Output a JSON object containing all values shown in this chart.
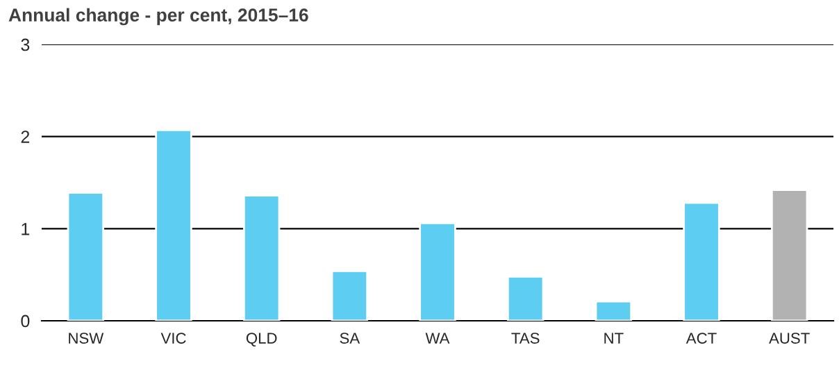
{
  "chart_data": {
    "type": "bar",
    "title": "Annual change - per cent, 2015–16",
    "categories": [
      "NSW",
      "VIC",
      "QLD",
      "SA",
      "WA",
      "TAS",
      "NT",
      "ACT",
      "AUST"
    ],
    "values": [
      1.39,
      2.07,
      1.36,
      0.54,
      1.06,
      0.48,
      0.21,
      1.28,
      1.42
    ],
    "colors": [
      "#5dcdf1",
      "#5dcdf1",
      "#5dcdf1",
      "#5dcdf1",
      "#5dcdf1",
      "#5dcdf1",
      "#5dcdf1",
      "#5dcdf1",
      "#b2b2b2"
    ],
    "ylim": [
      0,
      3
    ],
    "yticks": [
      0,
      1,
      2,
      3
    ],
    "grid": "y"
  }
}
